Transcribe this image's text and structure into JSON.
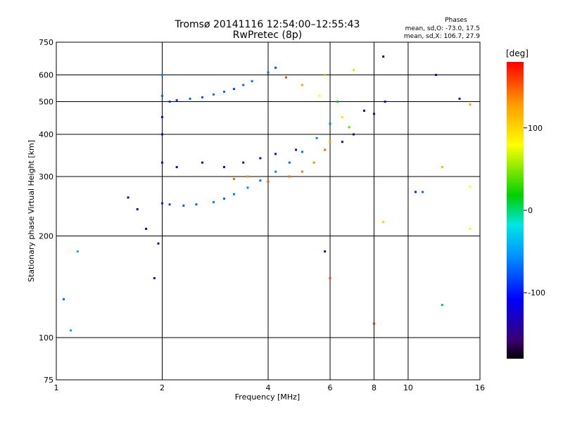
{
  "chart_data": {
    "type": "scatter",
    "title": "Tromsø 20141116 12:54:00–12:55:43",
    "subtitle": "RwPretec (8p)",
    "xlabel": "Frequency [MHz]",
    "ylabel": "Stationary phase Virtual Height [km]",
    "x_scale": "log",
    "y_scale": "log",
    "xlim": [
      1,
      16
    ],
    "ylim": [
      75,
      750
    ],
    "x_ticks": [
      1,
      2,
      4,
      6,
      8,
      10,
      16
    ],
    "y_ticks": [
      75,
      100,
      200,
      300,
      400,
      500,
      600,
      750
    ],
    "grid": true,
    "phase_stats": {
      "heading": "Phases",
      "o_line": "mean, sd,O: -73.0, 17.5",
      "x_line": "mean, sd,X: 106.7, 27.9"
    },
    "colorbar": {
      "label": "[deg]",
      "range": [
        -180,
        180
      ],
      "ticks": [
        100,
        0,
        -100
      ],
      "colors": [
        "#000000",
        "#3a0070",
        "#0000ff",
        "#0096ff",
        "#00e6e6",
        "#00d000",
        "#ffff00",
        "#ff9900",
        "#ff0000"
      ]
    },
    "series": [
      {
        "points": [
          [
            1.05,
            130,
            -60
          ],
          [
            1.1,
            105,
            -40
          ],
          [
            1.15,
            180,
            -30
          ],
          [
            1.6,
            260,
            -120
          ],
          [
            1.7,
            240,
            -110
          ],
          [
            1.8,
            210,
            -100
          ],
          [
            1.9,
            150,
            -95
          ],
          [
            1.95,
            190,
            -115
          ],
          [
            2.0,
            520,
            -60
          ],
          [
            2.0,
            600,
            -50
          ],
          [
            2.0,
            450,
            -90
          ],
          [
            2.0,
            400,
            -100
          ],
          [
            2.0,
            330,
            -110
          ],
          [
            2.0,
            250,
            -80
          ],
          [
            2.1,
            500,
            -75
          ],
          [
            2.2,
            505,
            -70
          ],
          [
            2.4,
            510,
            -60
          ],
          [
            2.6,
            515,
            -65
          ],
          [
            2.8,
            525,
            -55
          ],
          [
            3.0,
            535,
            -60
          ],
          [
            3.2,
            545,
            -70
          ],
          [
            3.4,
            560,
            -60
          ],
          [
            3.6,
            575,
            -55
          ],
          [
            4.0,
            610,
            -60
          ],
          [
            4.2,
            630,
            -65
          ],
          [
            2.1,
            248,
            -70
          ],
          [
            2.3,
            246,
            -65
          ],
          [
            2.5,
            248,
            -60
          ],
          [
            2.8,
            252,
            -55
          ],
          [
            3.0,
            258,
            -60
          ],
          [
            3.2,
            266,
            -55
          ],
          [
            3.5,
            278,
            -50
          ],
          [
            3.8,
            292,
            -55
          ],
          [
            4.2,
            310,
            -50
          ],
          [
            4.6,
            330,
            -60
          ],
          [
            5.0,
            355,
            -55
          ],
          [
            5.5,
            390,
            -50
          ],
          [
            6.0,
            430,
            -55
          ],
          [
            2.2,
            320,
            -120
          ],
          [
            2.6,
            330,
            -115
          ],
          [
            3.0,
            320,
            -110
          ],
          [
            3.4,
            330,
            -105
          ],
          [
            3.8,
            340,
            -100
          ],
          [
            4.2,
            350,
            -115
          ],
          [
            4.8,
            360,
            -120
          ],
          [
            3.2,
            295,
            150
          ],
          [
            3.5,
            300,
            140
          ],
          [
            4.0,
            290,
            155
          ],
          [
            4.6,
            300,
            150
          ],
          [
            5.0,
            310,
            145
          ],
          [
            5.4,
            330,
            140
          ],
          [
            5.8,
            360,
            150
          ],
          [
            6.0,
            380,
            135
          ],
          [
            4.5,
            590,
            160
          ],
          [
            5.0,
            560,
            130
          ],
          [
            5.6,
            520,
            90
          ],
          [
            5.8,
            600,
            70
          ],
          [
            6.3,
            500,
            40
          ],
          [
            6.5,
            450,
            100
          ],
          [
            6.8,
            420,
            60
          ],
          [
            6.5,
            380,
            -130
          ],
          [
            7.0,
            400,
            -140
          ],
          [
            7.5,
            470,
            -120
          ],
          [
            8.0,
            460,
            -110
          ],
          [
            7.0,
            620,
            80
          ],
          [
            8.5,
            680,
            -150
          ],
          [
            8.6,
            500,
            -100
          ],
          [
            12.0,
            600,
            -110
          ],
          [
            14.0,
            510,
            -100
          ],
          [
            15.0,
            490,
            130
          ],
          [
            15.0,
            280,
            90
          ],
          [
            11.0,
            270,
            -60
          ],
          [
            10.5,
            270,
            -80
          ],
          [
            5.8,
            180,
            -120
          ],
          [
            6.0,
            150,
            160
          ],
          [
            8.0,
            110,
            170
          ],
          [
            8.5,
            220,
            110
          ],
          [
            12.5,
            125,
            30
          ],
          [
            12.5,
            320,
            120
          ],
          [
            15.0,
            210,
            90
          ]
        ]
      }
    ]
  }
}
